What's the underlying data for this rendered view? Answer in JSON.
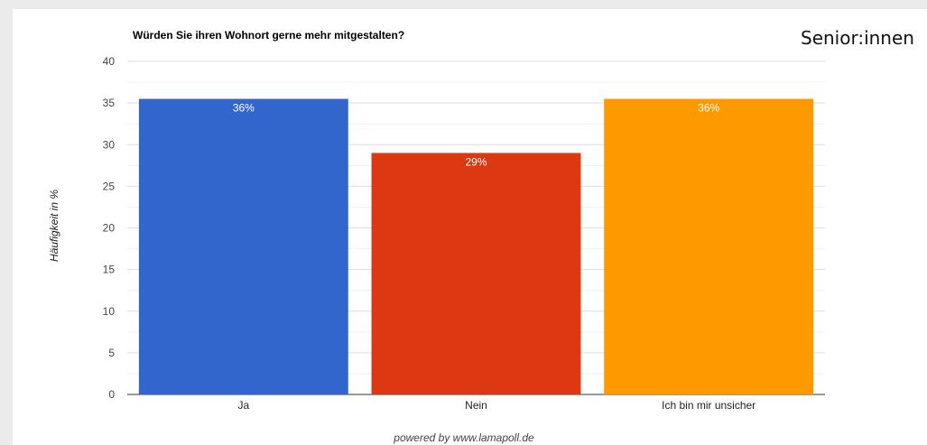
{
  "corner_label": "Senior:innen",
  "footer": "powered by www.lamapoll.de",
  "chart_data": {
    "type": "bar",
    "title": "Würden Sie ihren Wohnort gerne mehr mitgestalten?",
    "xlabel": "",
    "ylabel": "Häufigkeit in %",
    "categories": [
      "Ja",
      "Nein",
      "Ich bin mir unsicher"
    ],
    "values": [
      35.5,
      29,
      35.5
    ],
    "data_labels": [
      "36%",
      "29%",
      "36%"
    ],
    "colors": [
      "#3366cc",
      "#dc3912",
      "#ff9900"
    ],
    "label_colors": [
      "#ffffff",
      "#ffffff",
      "#ffffff"
    ],
    "ylim": [
      0,
      40
    ],
    "yticks": [
      0,
      5,
      10,
      15,
      20,
      25,
      30,
      35,
      40
    ],
    "grid": true,
    "legend": "none"
  }
}
